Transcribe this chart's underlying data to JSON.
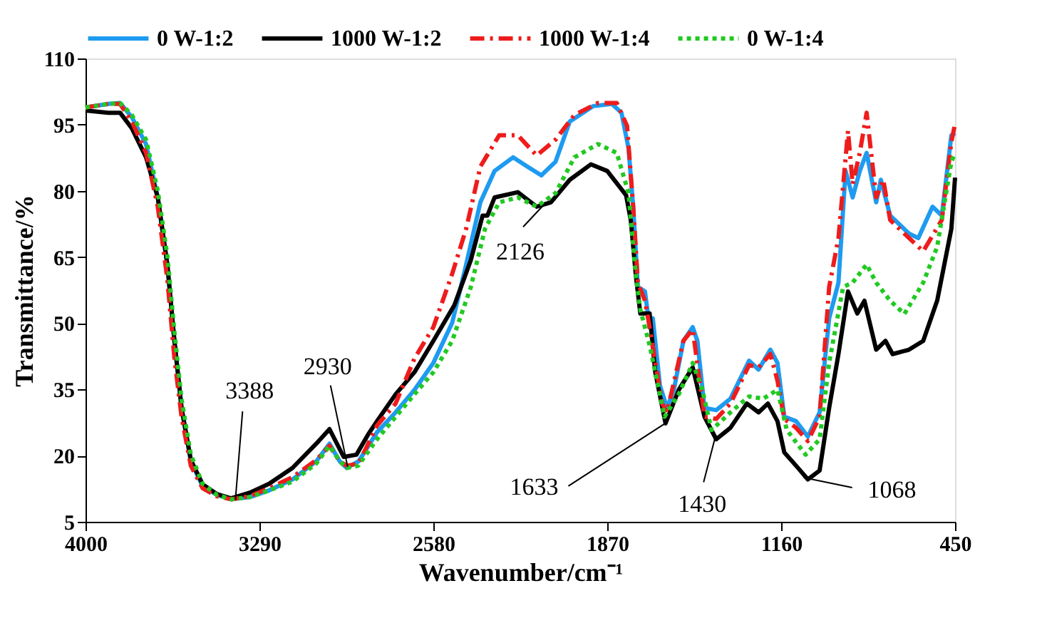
{
  "chart_data": {
    "type": "line",
    "xlabel": "Wavenumber/cm⁻¹",
    "ylabel": "Transmittance/%",
    "xlim": [
      4000,
      450
    ],
    "xticks": [
      4000,
      3290,
      2580,
      1870,
      1160,
      450
    ],
    "ylim": [
      5,
      110
    ],
    "yticks": [
      5,
      20,
      35,
      50,
      65,
      80,
      95,
      110
    ],
    "grid": false,
    "legend": "top",
    "marker": "none",
    "series": [
      {
        "name": "0 W-1:2",
        "color": "#1e9bf0",
        "line_style": "solid",
        "x": [
          4000,
          3907,
          3859,
          3811,
          3753,
          3705,
          3666,
          3637,
          3608,
          3570,
          3522,
          3464,
          3406,
          3329,
          3251,
          3155,
          3058,
          3004,
          2962,
          2933,
          2885,
          2810,
          2734,
          2657,
          2580,
          2503,
          2446,
          2388,
          2330,
          2254,
          2196,
          2139,
          2081,
          2023,
          1927,
          1851,
          1812,
          1783,
          1764,
          1745,
          1716,
          1697,
          1684,
          1655,
          1626,
          1598,
          1559,
          1521,
          1502,
          1473,
          1425,
          1367,
          1291,
          1252,
          1204,
          1175,
          1147,
          1099,
          1051,
          1003,
          964,
          926,
          897,
          868,
          839,
          811,
          772,
          753,
          715,
          638,
          600,
          542,
          504,
          465,
          450
        ],
        "values": [
          98.9,
          99.7,
          99.9,
          96.7,
          90.6,
          78.5,
          63.3,
          46,
          30.8,
          18.7,
          13.1,
          11.1,
          10.1,
          10.6,
          12.1,
          14.6,
          18.7,
          22.7,
          18.7,
          17.2,
          18.7,
          25.3,
          29.8,
          34.9,
          41,
          50.1,
          63.3,
          77.4,
          84.5,
          87.6,
          85.5,
          83.5,
          86.6,
          95.7,
          99.2,
          99.7,
          97.7,
          89.6,
          76.4,
          58.2,
          57.2,
          49.1,
          51.1,
          35.9,
          30.8,
          34.9,
          46,
          49.1,
          46,
          30.8,
          30.3,
          32.9,
          41.5,
          39.5,
          44,
          41,
          28.8,
          27.8,
          24.3,
          29.8,
          51.1,
          59.2,
          84.5,
          78.5,
          84.5,
          88.6,
          77.4,
          82.5,
          74.4,
          70.3,
          69.3,
          76.4,
          74.4,
          92.6,
          93.1
        ]
      },
      {
        "name": "1000 W-1:2",
        "color": "#000000",
        "line_style": "solid",
        "x": [
          4000,
          3907,
          3859,
          3811,
          3753,
          3705,
          3666,
          3637,
          3608,
          3570,
          3522,
          3464,
          3406,
          3329,
          3251,
          3155,
          3058,
          3004,
          2946,
          2894,
          2846,
          2810,
          2734,
          2657,
          2580,
          2494,
          2427,
          2379,
          2359,
          2330,
          2235,
          2158,
          2100,
          2023,
          1937,
          1870,
          1793,
          1774,
          1754,
          1735,
          1697,
          1674,
          1632,
          1578,
          1521,
          1473,
          1425,
          1367,
          1300,
          1252,
          1214,
          1175,
          1147,
          1099,
          1051,
          1003,
          964,
          926,
          887,
          849,
          820,
          772,
          734,
          705,
          638,
          580,
          523,
          465,
          450
        ],
        "values": [
          98.2,
          97.7,
          97.7,
          94.2,
          87.6,
          78.5,
          63.3,
          46,
          30.8,
          19,
          13.5,
          11.3,
          10.3,
          11.6,
          13.6,
          17.2,
          22.7,
          26,
          19.7,
          20.2,
          24.8,
          27.8,
          33.9,
          38.9,
          46,
          54.1,
          64.3,
          74.4,
          74.4,
          78.5,
          79.7,
          76.4,
          77.4,
          82.5,
          86,
          84.5,
          79,
          73.4,
          61.2,
          52.2,
          52.2,
          38.9,
          27.3,
          34.9,
          40,
          28.8,
          23.7,
          26.3,
          31.8,
          29.8,
          31.8,
          27.8,
          20.7,
          17.7,
          14.6,
          16.6,
          30.8,
          43,
          57.2,
          52.2,
          55.1,
          44,
          46,
          43,
          44,
          46,
          55.1,
          71.4,
          83
        ]
      },
      {
        "name": "1000 W-1:4",
        "color": "#ee1c1c",
        "line_style": "dashed",
        "x": [
          4000,
          3907,
          3859,
          3811,
          3753,
          3705,
          3666,
          3637,
          3608,
          3570,
          3522,
          3464,
          3406,
          3329,
          3251,
          3155,
          3058,
          3004,
          2962,
          2933,
          2885,
          2810,
          2734,
          2657,
          2580,
          2503,
          2446,
          2388,
          2311,
          2235,
          2158,
          2081,
          2004,
          1908,
          1831,
          1789,
          1764,
          1745,
          1716,
          1697,
          1646,
          1626,
          1559,
          1521,
          1473,
          1425,
          1367,
          1291,
          1252,
          1204,
          1175,
          1147,
          1099,
          1051,
          1003,
          964,
          926,
          887,
          868,
          839,
          811,
          772,
          743,
          715,
          638,
          580,
          504,
          465,
          450
        ],
        "values": [
          98.9,
          99.7,
          99.7,
          95.7,
          88.6,
          76.4,
          60,
          42,
          28.8,
          17.7,
          12.6,
          10.8,
          10.1,
          10.8,
          12.6,
          15.1,
          19,
          22.2,
          18.7,
          17.7,
          18.2,
          26.8,
          31.8,
          42,
          49.1,
          61.2,
          71.4,
          85.5,
          92.6,
          92.6,
          88,
          91.6,
          97.2,
          99.9,
          99.9,
          94.7,
          76.4,
          59.2,
          55.1,
          49.1,
          31.8,
          29.8,
          46,
          48.6,
          28.8,
          28.3,
          31.8,
          40.5,
          40,
          43,
          37,
          28.3,
          26.3,
          23.3,
          28.8,
          58.2,
          69.3,
          93.6,
          81.5,
          88.6,
          97.7,
          78.5,
          82.5,
          73.4,
          69.3,
          66.3,
          73.4,
          91.1,
          95.2
        ]
      },
      {
        "name": "0 W-1:4",
        "color": "#22c922",
        "line_style": "dotted",
        "x": [
          4000,
          3907,
          3859,
          3811,
          3753,
          3705,
          3666,
          3637,
          3608,
          3570,
          3522,
          3464,
          3406,
          3329,
          3251,
          3155,
          3058,
          3004,
          2962,
          2933,
          2887,
          2810,
          2734,
          2657,
          2580,
          2503,
          2427,
          2369,
          2311,
          2235,
          2158,
          2081,
          2004,
          1908,
          1831,
          1783,
          1754,
          1735,
          1697,
          1636,
          1578,
          1521,
          1482,
          1444,
          1367,
          1291,
          1233,
          1175,
          1137,
          1060,
          1003,
          964,
          907,
          868,
          811,
          772,
          715,
          657,
          580,
          523,
          465,
          450
        ],
        "values": [
          98.9,
          99.7,
          99.9,
          97.2,
          91.6,
          80,
          65.3,
          48,
          32.8,
          20.2,
          13.6,
          11.1,
          10.1,
          10.6,
          12.1,
          14.1,
          18.2,
          22.2,
          18.7,
          17.2,
          17.7,
          23.7,
          28.8,
          33.9,
          38.9,
          46,
          58.2,
          71.4,
          77.4,
          78.5,
          76.4,
          79.5,
          87.6,
          90.6,
          88.6,
          79.5,
          61.2,
          53.1,
          45,
          28.8,
          33.9,
          41,
          34.9,
          25.8,
          29.8,
          33.4,
          32.9,
          34.9,
          25.8,
          20.2,
          23.7,
          41,
          58.2,
          59.2,
          63.3,
          59.2,
          55.1,
          52.1,
          59.2,
          67.3,
          86.6,
          88.6
        ]
      }
    ],
    "annotations": [
      {
        "text": "3388",
        "x": 3388,
        "y": 10
      },
      {
        "text": "2930",
        "x": 2930,
        "y": 17.5
      },
      {
        "text": "2126",
        "x": 2126,
        "y": 77
      },
      {
        "text": "1633",
        "x": 1633,
        "y": 27.3
      },
      {
        "text": "1430",
        "x": 1430,
        "y": 24
      },
      {
        "text": "1068",
        "x": 1068,
        "y": 15
      }
    ]
  }
}
